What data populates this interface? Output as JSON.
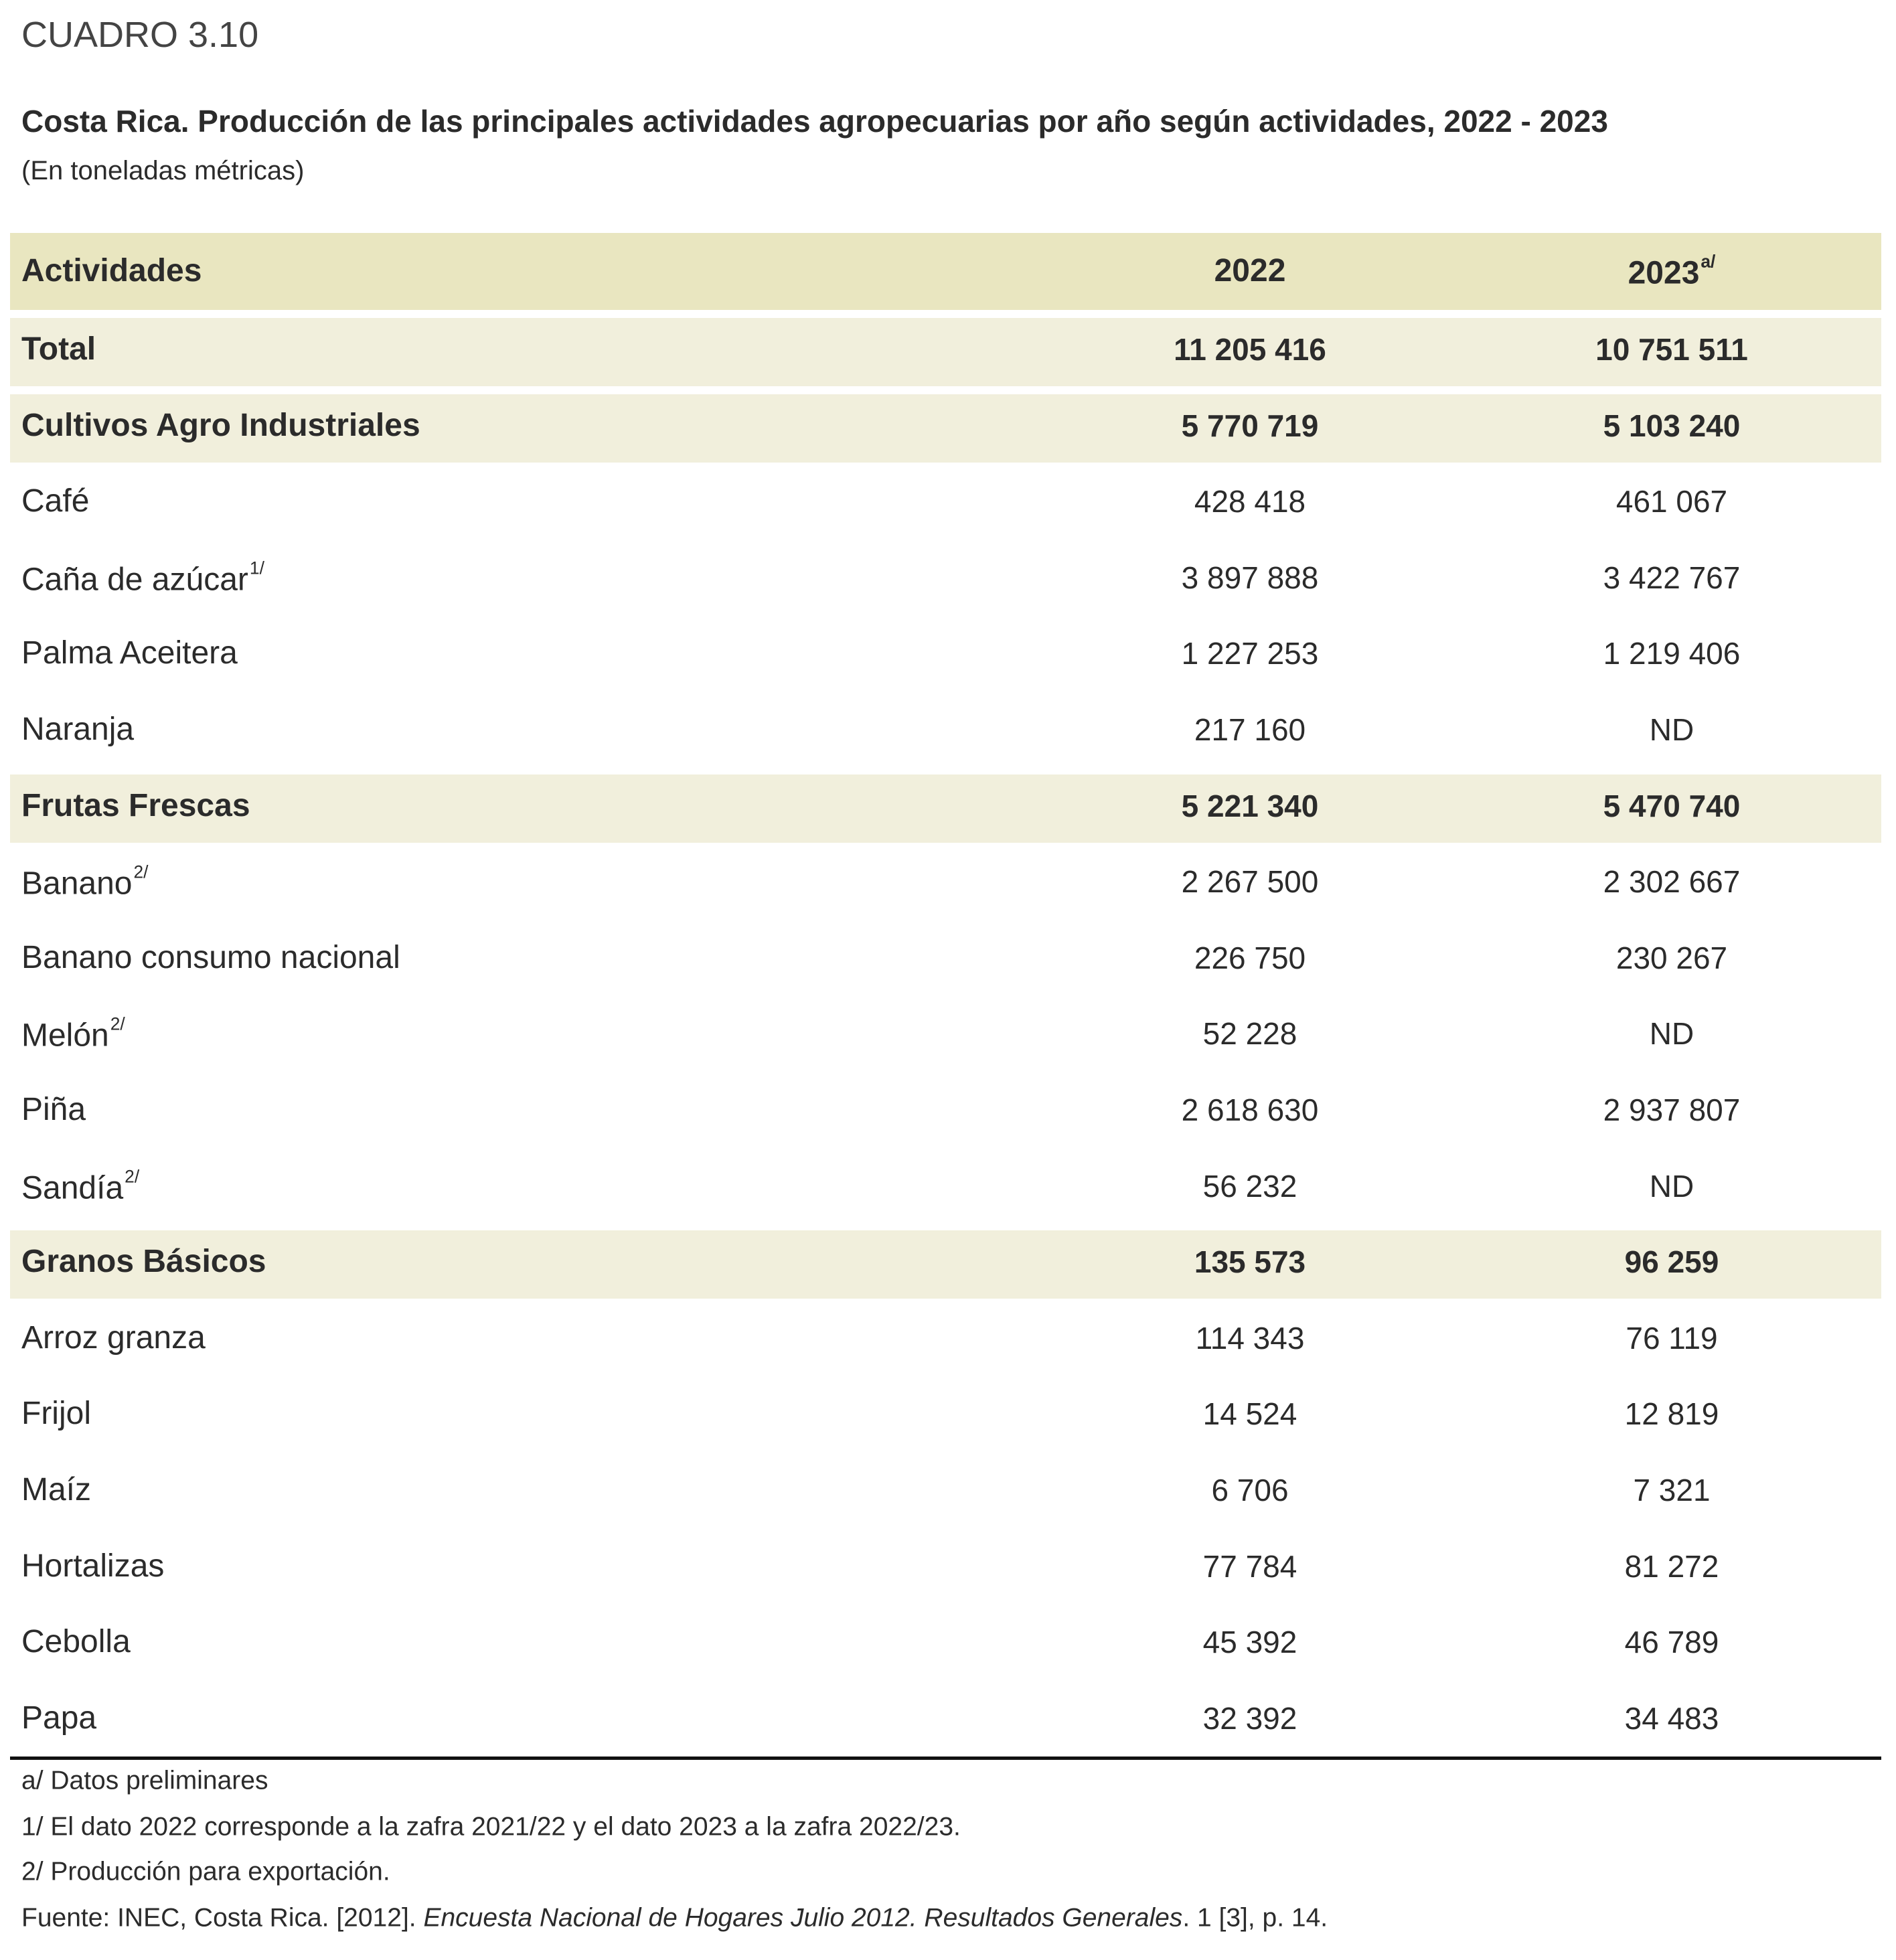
{
  "header": {
    "label": "CUADRO 3.10",
    "title": "Costa Rica. Producción de las principales actividades agropecuarias por año según actividades, 2022 - 2023",
    "subtitle": "(En toneladas métricas)"
  },
  "table": {
    "columns": [
      {
        "text": "Actividades"
      },
      {
        "text": "2022"
      },
      {
        "text": "2023",
        "sup": "a/"
      }
    ],
    "rows": [
      {
        "label": "Total",
        "values": [
          "11 205 416",
          "10 751 511"
        ],
        "bold": true
      },
      {
        "label": "Cultivos Agro Industriales",
        "values": [
          "5 770 719",
          "5 103 240"
        ],
        "bold": true
      },
      {
        "label": "Café",
        "values": [
          "428 418",
          "461 067"
        ]
      },
      {
        "label": "Caña de azúcar",
        "sup": "1/",
        "values": [
          "3 897 888",
          "3 422 767"
        ]
      },
      {
        "label": "Palma Aceitera",
        "values": [
          "1 227 253",
          "1 219 406"
        ]
      },
      {
        "label": "Naranja",
        "values": [
          "217 160",
          "ND"
        ]
      },
      {
        "label": "Frutas Frescas",
        "values": [
          "5 221 340",
          "5 470 740"
        ],
        "bold": true
      },
      {
        "label": "Banano",
        "sup": "2/",
        "values": [
          "2 267 500",
          "2 302 667"
        ]
      },
      {
        "label": "Banano consumo nacional",
        "values": [
          "226 750",
          "230 267"
        ]
      },
      {
        "label": "Melón",
        "sup": "2/",
        "values": [
          "52 228",
          "ND"
        ]
      },
      {
        "label": "Piña",
        "values": [
          "2 618 630",
          "2 937 807"
        ]
      },
      {
        "label": "Sandía",
        "sup": "2/",
        "values": [
          "56 232",
          "ND"
        ]
      },
      {
        "label": "Granos Básicos",
        "values": [
          "135 573",
          "96 259"
        ],
        "bold": true
      },
      {
        "label": "Arroz granza",
        "values": [
          "114 343",
          "76 119"
        ]
      },
      {
        "label": "Frijol",
        "values": [
          "14 524",
          "12 819"
        ]
      },
      {
        "label": "Maíz",
        "values": [
          "6 706",
          "7 321"
        ]
      },
      {
        "label": "Hortalizas",
        "values": [
          "77 784",
          "81 272"
        ]
      },
      {
        "label": "Cebolla",
        "values": [
          "45 392",
          "46 789"
        ]
      },
      {
        "label": "Papa",
        "values": [
          "32 392",
          "34 483"
        ]
      }
    ]
  },
  "notes": [
    [
      {
        "text": "a/ Datos preliminares"
      }
    ],
    [
      {
        "text": "1/ El dato 2022 corresponde a la zafra 2021/22 y el dato 2023 a la zafra 2022/23."
      }
    ],
    [
      {
        "text": "2/ Producción para exportación."
      }
    ],
    [
      {
        "text": "Fuente: INEC, Costa Rica. [2012]. "
      },
      {
        "text": "Encuesta Nacional de Hogares Julio 2012. Resultados Generales",
        "italic": true
      },
      {
        "text": ". 1 [3], p. 14."
      }
    ]
  ]
}
